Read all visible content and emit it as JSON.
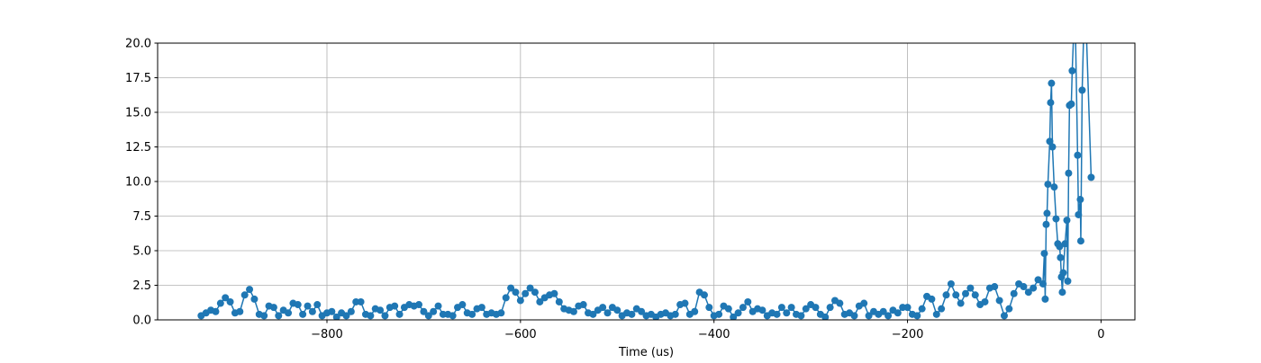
{
  "chart_data": {
    "type": "line",
    "xlabel": "Time (us)",
    "color": "#1f77b4",
    "grid": true,
    "xlim": [
      -975,
      35
    ],
    "xticks": [
      {
        "value": -800,
        "label": "−800"
      },
      {
        "value": -600,
        "label": "−600"
      },
      {
        "value": -400,
        "label": "−400"
      },
      {
        "value": -200,
        "label": "−200"
      },
      0
    ],
    "ylim": [
      0,
      20
    ],
    "yticks": [
      {
        "value": 0,
        "label": "0.0"
      },
      {
        "value": 2.5,
        "label": "2.5"
      },
      {
        "value": 5,
        "label": "5.0"
      },
      {
        "value": 7.5,
        "label": "7.5"
      },
      {
        "value": 10,
        "label": "10.0"
      },
      {
        "value": 12.5,
        "label": "12.5"
      },
      {
        "value": 15,
        "label": "15.0"
      },
      {
        "value": 17.5,
        "label": "17.5"
      },
      {
        "value": 20,
        "label": "20.0"
      }
    ],
    "x": [
      -930,
      -925,
      -920,
      -915,
      -910,
      -905,
      -900,
      -895,
      -890,
      -885,
      -880,
      -875,
      -870,
      -865,
      -860,
      -855,
      -850,
      -845,
      -840,
      -835,
      -830,
      -825,
      -820,
      -815,
      -810,
      -805,
      -800,
      -795,
      -790,
      -785,
      -780,
      -775,
      -770,
      -765,
      -760,
      -755,
      -750,
      -745,
      -740,
      -735,
      -730,
      -725,
      -720,
      -715,
      -710,
      -705,
      -700,
      -695,
      -690,
      -685,
      -680,
      -675,
      -670,
      -665,
      -660,
      -655,
      -650,
      -645,
      -640,
      -635,
      -630,
      -625,
      -620,
      -615,
      -610,
      -605,
      -600,
      -595,
      -590,
      -585,
      -580,
      -575,
      -570,
      -565,
      -560,
      -555,
      -550,
      -545,
      -540,
      -535,
      -530,
      -525,
      -520,
      -515,
      -510,
      -505,
      -500,
      -495,
      -490,
      -485,
      -480,
      -475,
      -470,
      -465,
      -460,
      -455,
      -450,
      -445,
      -440,
      -435,
      -430,
      -425,
      -420,
      -415,
      -410,
      -405,
      -400,
      -395,
      -390,
      -385,
      -380,
      -375,
      -370,
      -365,
      -360,
      -355,
      -350,
      -345,
      -340,
      -335,
      -330,
      -325,
      -320,
      -315,
      -310,
      -305,
      -300,
      -295,
      -290,
      -285,
      -280,
      -275,
      -270,
      -265,
      -260,
      -255,
      -250,
      -245,
      -240,
      -235,
      -230,
      -225,
      -220,
      -215,
      -210,
      -205,
      -200,
      -195,
      -190,
      -185,
      -180,
      -175,
      -170,
      -165,
      -160,
      -155,
      -150,
      -145,
      -140,
      -135,
      -130,
      -125,
      -120,
      -115,
      -110,
      -105,
      -100,
      -95,
      -90,
      -85,
      -80,
      -75,
      -70,
      -65,
      -60,
      -58.6,
      -57.7,
      -56.7,
      -55.8,
      -54.9,
      -53,
      -52.1,
      -51.2,
      -50.2,
      -48.4,
      -46.5,
      -44.7,
      -42.8,
      -41.9,
      -40.9,
      -40,
      -39.1,
      -37.2,
      -35.3,
      -34.4,
      -33.5,
      -32.6,
      -30.7,
      -29.8,
      -27,
      -24.2,
      -23.3,
      -21.4,
      -20.9,
      -19.5,
      -16.7,
      -10.2
    ],
    "values": [
      0.3,
      0.5,
      0.7,
      0.6,
      1.2,
      1.6,
      1.3,
      0.5,
      0.6,
      1.8,
      2.2,
      1.5,
      0.4,
      0.3,
      1.0,
      0.9,
      0.3,
      0.7,
      0.5,
      1.2,
      1.1,
      0.4,
      1.0,
      0.6,
      1.1,
      0.3,
      0.5,
      0.6,
      0.2,
      0.5,
      0.3,
      0.6,
      1.3,
      1.3,
      0.4,
      0.3,
      0.8,
      0.7,
      0.3,
      0.9,
      1.0,
      0.4,
      0.9,
      1.1,
      1.0,
      1.1,
      0.6,
      0.3,
      0.6,
      1.0,
      0.4,
      0.4,
      0.3,
      0.9,
      1.1,
      0.5,
      0.4,
      0.8,
      0.9,
      0.4,
      0.5,
      0.4,
      0.5,
      1.6,
      2.3,
      2.0,
      1.4,
      1.9,
      2.3,
      2.0,
      1.3,
      1.6,
      1.8,
      1.9,
      1.3,
      0.8,
      0.7,
      0.6,
      1.0,
      1.1,
      0.5,
      0.4,
      0.7,
      0.9,
      0.5,
      0.9,
      0.7,
      0.3,
      0.5,
      0.4,
      0.8,
      0.6,
      0.3,
      0.4,
      0.2,
      0.4,
      0.5,
      0.3,
      0.4,
      1.1,
      1.2,
      0.4,
      0.6,
      2.0,
      1.8,
      0.9,
      0.3,
      0.4,
      1.0,
      0.8,
      0.2,
      0.5,
      0.9,
      1.3,
      0.6,
      0.8,
      0.7,
      0.3,
      0.5,
      0.4,
      0.9,
      0.5,
      0.9,
      0.4,
      0.3,
      0.8,
      1.1,
      0.9,
      0.4,
      0.2,
      0.9,
      1.4,
      1.2,
      0.4,
      0.5,
      0.3,
      1.0,
      1.2,
      0.3,
      0.6,
      0.4,
      0.6,
      0.3,
      0.7,
      0.5,
      0.9,
      0.9,
      0.4,
      0.3,
      0.8,
      1.7,
      1.5,
      0.4,
      0.8,
      1.8,
      2.6,
      1.8,
      1.2,
      1.9,
      2.3,
      1.8,
      1.1,
      1.3,
      2.3,
      2.4,
      1.4,
      0.3,
      0.8,
      1.9,
      2.6,
      2.4,
      2.0,
      2.3,
      2.9,
      2.6,
      4.8,
      1.5,
      6.9,
      7.7,
      9.8,
      12.9,
      15.7,
      17.1,
      12.5,
      9.6,
      7.3,
      5.5,
      5.3,
      4.5,
      3.1,
      2.0,
      3.4,
      5.5,
      7.2,
      2.8,
      10.6,
      15.5,
      15.6,
      18.0,
      23,
      11.9,
      7.6,
      8.7,
      5.7,
      16.6,
      24,
      10.3
    ]
  }
}
